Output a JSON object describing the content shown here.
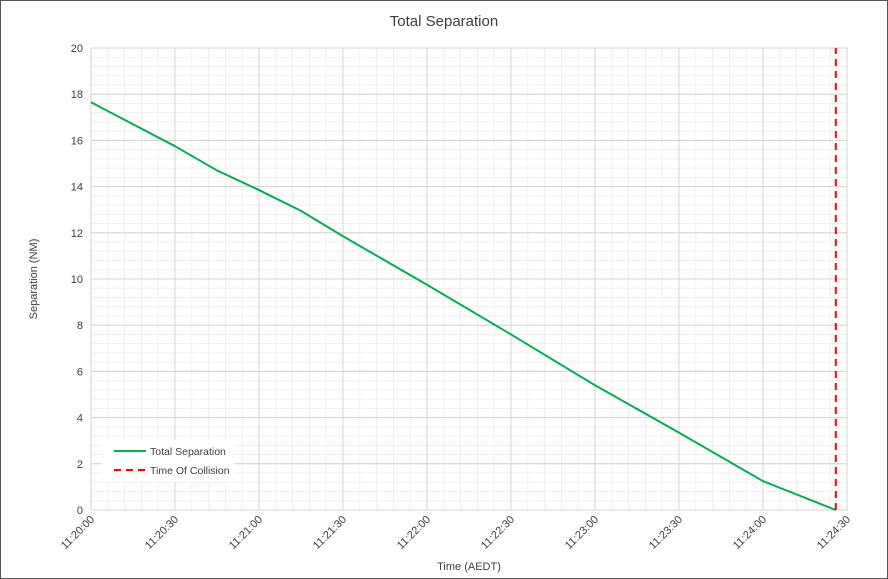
{
  "chart_data": {
    "type": "line",
    "title": "Total Separation",
    "xlabel": "Time (AEDT)",
    "ylabel": "Separation (NM)",
    "ylim": [
      0,
      20
    ],
    "yticks": [
      0,
      2,
      4,
      6,
      8,
      10,
      12,
      14,
      16,
      18,
      20
    ],
    "xlim": [
      "11:20:00",
      "11:24:30"
    ],
    "xticks": [
      "11:20:00",
      "11:20:30",
      "11:21:00",
      "11:21:30",
      "11:22:00",
      "11:22:30",
      "11:23:00",
      "11:23:30",
      "11:24:00",
      "11:24:30"
    ],
    "grid": true,
    "legend_position": "bottom-left",
    "series": [
      {
        "name": "Total Separation",
        "color": "#00b050",
        "style": "solid",
        "points": [
          [
            "11:20:00",
            17.65
          ],
          [
            "11:20:30",
            15.75
          ],
          [
            "11:20:45",
            14.7
          ],
          [
            "11:21:00",
            13.85
          ],
          [
            "11:21:15",
            12.95
          ],
          [
            "11:21:30",
            11.85
          ],
          [
            "11:22:00",
            9.75
          ],
          [
            "11:22:30",
            7.6
          ],
          [
            "11:23:00",
            5.4
          ],
          [
            "11:23:30",
            3.35
          ],
          [
            "11:24:00",
            1.25
          ],
          [
            "11:24:26",
            0.0
          ]
        ]
      },
      {
        "name": "Time Of Collision",
        "color": "#ff0000",
        "style": "dashed",
        "points": [
          [
            "11:24:26",
            0
          ],
          [
            "11:24:26",
            20
          ]
        ]
      }
    ]
  }
}
